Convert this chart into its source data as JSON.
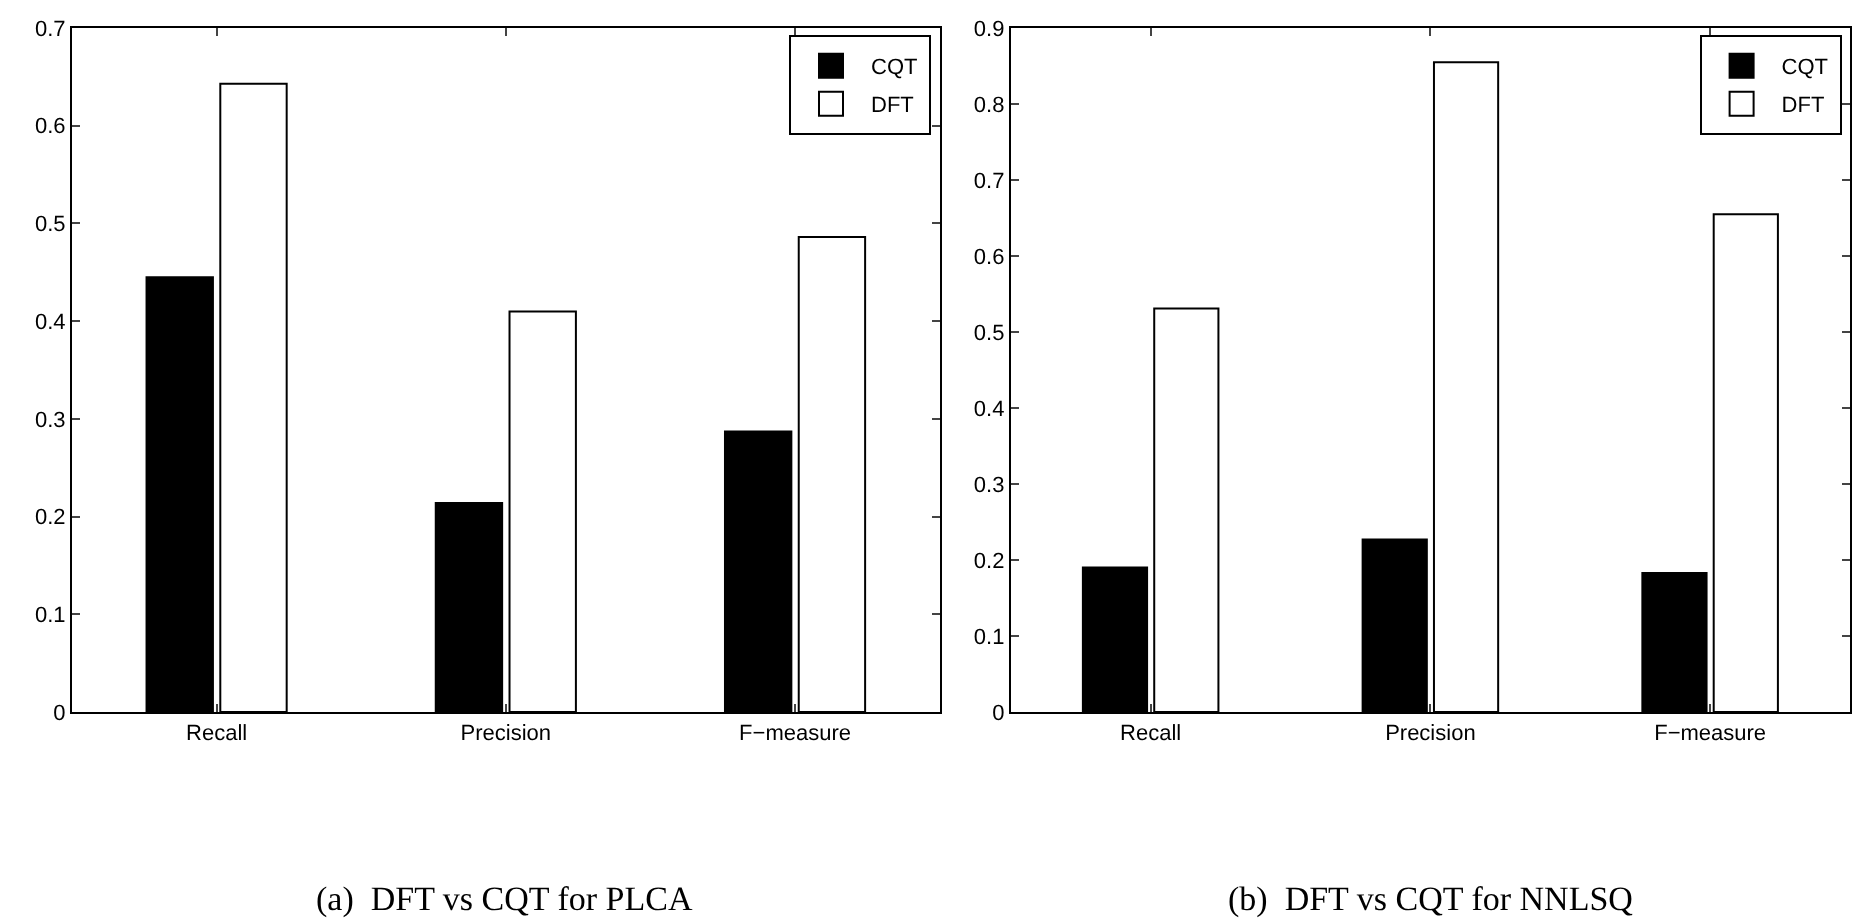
{
  "chart_data": [
    {
      "type": "bar",
      "categories": [
        "Recall",
        "Precision",
        "F−measure"
      ],
      "series": [
        {
          "name": "CQT",
          "color": "#000000",
          "values": [
            0.445,
            0.214,
            0.287
          ]
        },
        {
          "name": "DFT",
          "color": "#ffffff",
          "values": [
            0.643,
            0.41,
            0.486
          ]
        }
      ],
      "ylim": [
        0,
        0.7
      ],
      "yticks": [
        0,
        0.1,
        0.2,
        0.3,
        0.4,
        0.5,
        0.6,
        0.7
      ],
      "legend": "top right",
      "annotations": [
        "(a)  DFT vs CQT for PLCA"
      ]
    },
    {
      "type": "bar",
      "categories": [
        "Recall",
        "Precision",
        "F−measure"
      ],
      "series": [
        {
          "name": "CQT",
          "color": "#000000",
          "values": [
            0.19,
            0.227,
            0.183
          ]
        },
        {
          "name": "DFT",
          "color": "#ffffff",
          "values": [
            0.531,
            0.855,
            0.655
          ]
        }
      ],
      "ylim": [
        0,
        0.9
      ],
      "yticks": [
        0,
        0.1,
        0.2,
        0.3,
        0.4,
        0.5,
        0.6,
        0.7,
        0.8,
        0.9
      ],
      "legend": "top right",
      "annotations": [
        "(b)  DFT vs CQT for NNLSQ"
      ]
    }
  ]
}
